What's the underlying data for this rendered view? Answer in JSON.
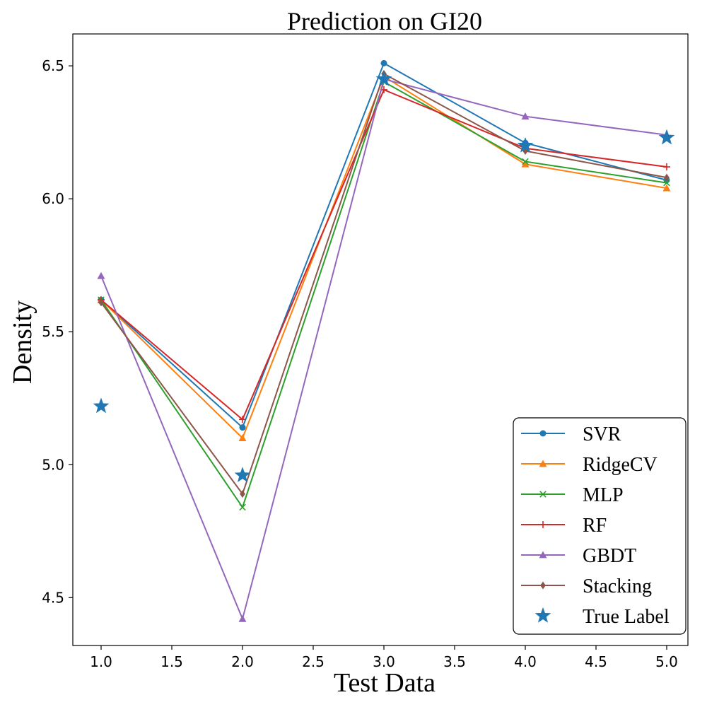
{
  "chart_data": {
    "type": "line",
    "title": "Prediction on GI20",
    "xlabel": "Test Data",
    "ylabel": "Density",
    "xlim": [
      0.8,
      5.15
    ],
    "ylim": [
      4.32,
      6.62
    ],
    "xticks": [
      1.0,
      1.5,
      2.0,
      2.5,
      3.0,
      3.5,
      4.0,
      4.5,
      5.0
    ],
    "xtick_labels": [
      "1.0",
      "1.5",
      "2.0",
      "2.5",
      "3.0",
      "3.5",
      "4.0",
      "4.5",
      "5.0"
    ],
    "yticks": [
      4.5,
      5.0,
      5.5,
      6.0,
      6.5
    ],
    "ytick_labels": [
      "4.5",
      "5.0",
      "5.5",
      "6.0",
      "6.5"
    ],
    "grid": false,
    "legend_position": "lower-right",
    "x": [
      1,
      2,
      3,
      4,
      5
    ],
    "series": [
      {
        "name": "SVR",
        "color": "#1f77b4",
        "marker": "circle",
        "values": [
          5.62,
          5.14,
          6.51,
          6.21,
          6.07
        ]
      },
      {
        "name": "RidgeCV",
        "color": "#ff7f0e",
        "marker": "triangle",
        "values": [
          5.62,
          5.1,
          6.46,
          6.13,
          6.04
        ]
      },
      {
        "name": "MLP",
        "color": "#2ca02c",
        "marker": "x",
        "values": [
          5.62,
          4.84,
          6.44,
          6.14,
          6.06
        ]
      },
      {
        "name": "RF",
        "color": "#d62728",
        "marker": "plus",
        "values": [
          5.62,
          5.17,
          6.41,
          6.19,
          6.12
        ]
      },
      {
        "name": "GBDT",
        "color": "#9467bd",
        "marker": "triangle",
        "values": [
          5.71,
          4.42,
          6.45,
          6.31,
          6.24
        ]
      },
      {
        "name": "Stacking",
        "color": "#8c564b",
        "marker": "diamond",
        "values": [
          5.61,
          4.89,
          6.47,
          6.18,
          6.08
        ]
      }
    ],
    "true_label": {
      "name": "True Label",
      "color": "#1f77b4",
      "marker": "star",
      "values": [
        5.22,
        4.96,
        6.45,
        6.2,
        6.23
      ]
    }
  }
}
